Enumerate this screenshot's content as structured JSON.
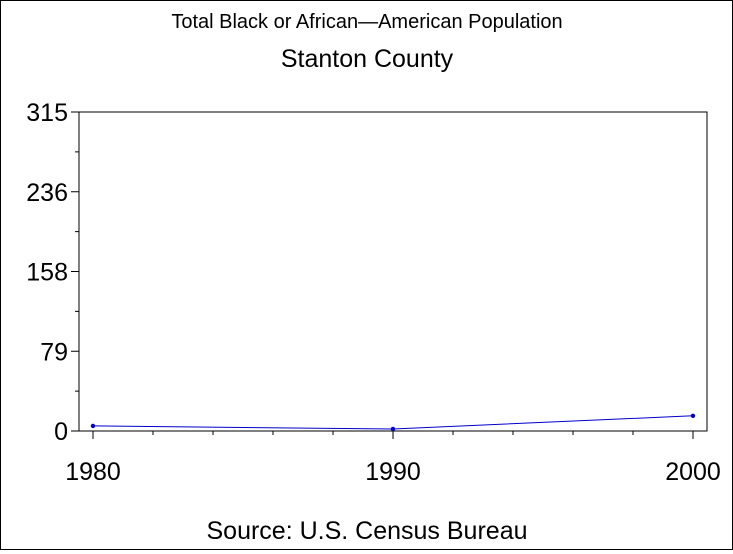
{
  "chart_data": {
    "type": "line",
    "title": "Total Black or African—American Population",
    "subtitle": "Stanton County",
    "footnote": "Source: U.S. Census Bureau",
    "x": [
      1980,
      1990,
      2000
    ],
    "series": [
      {
        "values": [
          5,
          2,
          15
        ],
        "color": "#0000cc"
      }
    ],
    "xlim": [
      1980,
      2000
    ],
    "ylim": [
      0,
      315
    ],
    "xticks": [
      "1980",
      "1990",
      "2000"
    ],
    "yticks": [
      "0",
      "79",
      "158",
      "236",
      "315"
    ],
    "grid": false
  }
}
